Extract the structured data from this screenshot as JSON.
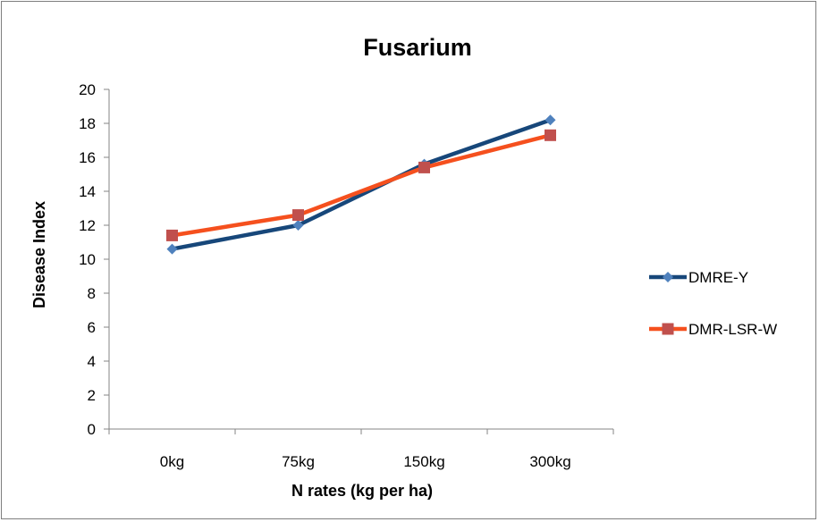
{
  "chart_data": {
    "type": "line",
    "title": "Fusarium",
    "xlabel": "N rates (kg per ha)",
    "ylabel": "Disease Index",
    "categories": [
      "0kg",
      "75kg",
      "150kg",
      "300kg"
    ],
    "ylim": [
      0,
      20
    ],
    "ytick_step": 2,
    "grid": false,
    "legend_position": "right",
    "series": [
      {
        "name": "DMRE-Y",
        "values": [
          10.6,
          12.0,
          15.6,
          18.2
        ],
        "color": "#17477a",
        "marker_color": "#4f81bd",
        "marker": "diamond"
      },
      {
        "name": "DMR-LSR-W",
        "values": [
          11.4,
          12.6,
          15.4,
          17.3
        ],
        "color": "#f5501e",
        "marker_color": "#c0504d",
        "marker": "square"
      }
    ]
  }
}
